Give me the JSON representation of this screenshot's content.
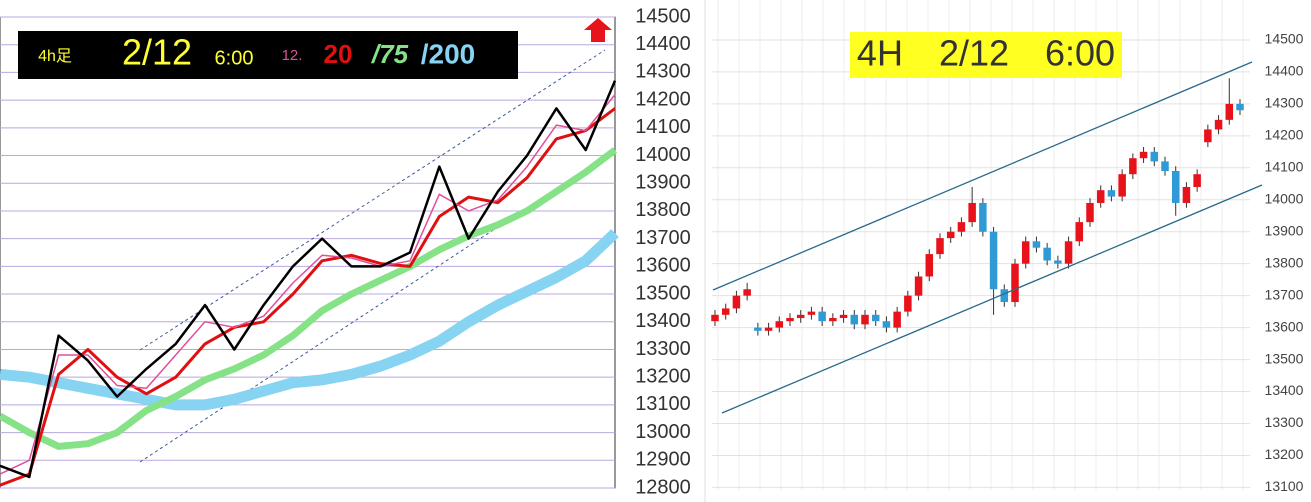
{
  "chart_data": [
    {
      "type": "line",
      "timeframe": "4h足",
      "date": "2/12",
      "time": "6:00",
      "ylim": [
        12800,
        14500
      ],
      "yticks": [
        12800,
        12900,
        13000,
        13100,
        13200,
        13300,
        13400,
        13500,
        13600,
        13700,
        13800,
        13900,
        14000,
        14100,
        14200,
        14300,
        14400,
        14500
      ],
      "grid": true,
      "grid_color": "#b8a8e0",
      "series": [
        {
          "color": "#000000",
          "values": [
            12880,
            12840,
            13350,
            13260,
            13130,
            13230,
            13320,
            13460,
            13300,
            13460,
            13600,
            13700,
            13600,
            13600,
            13650,
            13960,
            13700,
            13870,
            14000,
            14170,
            14020,
            14270
          ]
        },
        {
          "name": "12.",
          "color": "#e0509a",
          "values": [
            12850,
            12900,
            13280,
            13280,
            13170,
            13160,
            13280,
            13400,
            13380,
            13420,
            13540,
            13640,
            13630,
            13600,
            13620,
            13860,
            13800,
            13840,
            13960,
            14110,
            14090,
            14220
          ]
        },
        {
          "name": "20",
          "color": "#e01010",
          "values": [
            12810,
            12850,
            13210,
            13300,
            13200,
            13140,
            13200,
            13320,
            13380,
            13400,
            13500,
            13620,
            13640,
            13610,
            13600,
            13780,
            13850,
            13830,
            13920,
            14060,
            14090,
            14170
          ]
        },
        {
          "name": "/75",
          "color": "#86e286",
          "values": [
            13060,
            13000,
            12950,
            12960,
            13000,
            13080,
            13130,
            13190,
            13230,
            13280,
            13350,
            13440,
            13500,
            13550,
            13600,
            13660,
            13710,
            13750,
            13800,
            13870,
            13940,
            14020
          ]
        },
        {
          "name": "/200",
          "color": "#86d4f2",
          "values": [
            13210,
            13200,
            13180,
            13160,
            13140,
            13120,
            13100,
            13100,
            13120,
            13150,
            13180,
            13190,
            13210,
            13240,
            13280,
            13330,
            13400,
            13460,
            13510,
            13560,
            13620,
            13720
          ]
        }
      ]
    },
    {
      "type": "candlestick",
      "title": "4H　2/12　6:00",
      "ylim": [
        13070,
        14625
      ],
      "yticks": [
        13100,
        13200,
        13300,
        13400,
        13500,
        13600,
        13700,
        13800,
        13900,
        14000,
        14100,
        14200,
        14300,
        14400,
        14500
      ],
      "grid": true,
      "up_color": "#e8121a",
      "down_color": "#2f9ad6",
      "open": [
        13620,
        13640,
        13660,
        13700,
        13600,
        13590,
        13600,
        13620,
        13630,
        13640,
        13650,
        13620,
        13630,
        13640,
        13610,
        13640,
        13620,
        13600,
        13650,
        13700,
        13760,
        13830,
        13880,
        13900,
        13930,
        13990,
        13900,
        13720,
        13680,
        13800,
        13870,
        13850,
        13810,
        13800,
        13870,
        13930,
        13990,
        14030,
        14010,
        14080,
        14130,
        14150,
        14120,
        14090,
        13990,
        14040,
        14180,
        14220,
        14250,
        14300
      ],
      "high": [
        13655,
        13675,
        13715,
        13740,
        13615,
        13615,
        13635,
        13645,
        13655,
        13665,
        13665,
        13645,
        13655,
        13655,
        13655,
        13655,
        13635,
        13665,
        13715,
        13775,
        13845,
        13895,
        13915,
        13945,
        14040,
        14005,
        13915,
        13735,
        13815,
        13885,
        13885,
        13865,
        13825,
        13885,
        13945,
        14005,
        14045,
        14045,
        14095,
        14145,
        14165,
        14165,
        14135,
        14105,
        14055,
        14095,
        14235,
        14265,
        14380,
        14315
      ],
      "low": [
        13605,
        13625,
        13645,
        13685,
        13575,
        13575,
        13585,
        13605,
        13615,
        13625,
        13605,
        13605,
        13615,
        13595,
        13595,
        13605,
        13585,
        13585,
        13635,
        13685,
        13745,
        13815,
        13865,
        13885,
        13915,
        13885,
        13640,
        13665,
        13665,
        13785,
        13835,
        13795,
        13785,
        13785,
        13855,
        13915,
        13975,
        13995,
        13995,
        14065,
        14115,
        14105,
        14075,
        13950,
        13975,
        14025,
        14165,
        14205,
        14235,
        14265
      ],
      "close": [
        13640,
        13660,
        13700,
        13720,
        13590,
        13600,
        13620,
        13630,
        13640,
        13650,
        13620,
        13630,
        13640,
        13610,
        13640,
        13620,
        13600,
        13650,
        13700,
        13760,
        13830,
        13880,
        13900,
        13930,
        13990,
        13900,
        13720,
        13680,
        13800,
        13870,
        13850,
        13810,
        13800,
        13870,
        13930,
        13990,
        14030,
        14010,
        14080,
        14130,
        14150,
        14120,
        14090,
        13990,
        14040,
        14080,
        14220,
        14250,
        14300,
        14280
      ]
    }
  ]
}
